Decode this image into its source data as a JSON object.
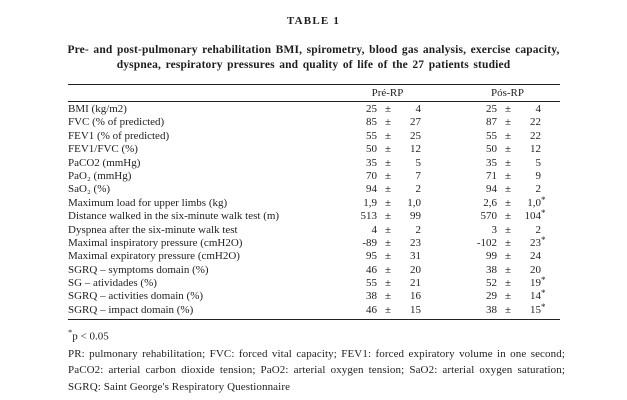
{
  "page": {
    "table_label": "TABLE 1",
    "title_line1": "Pre- and post-pulmonary rehabilitation BMI, spirometry, blood gas analysis, exercise capacity,",
    "title_line2": "dyspnea, respiratory pressures and quality of life of the 27 patients studied"
  },
  "table": {
    "plusminus": "±",
    "columns": {
      "pre": "Pré-RP",
      "pos": "Pós-RP"
    },
    "rows": [
      {
        "label": "BMI (kg/m2)",
        "pre": {
          "value": "25",
          "sd": "4",
          "star": ""
        },
        "pos": {
          "value": "25",
          "sd": "4",
          "star": ""
        }
      },
      {
        "label": "FVC (% of predicted)",
        "pre": {
          "value": "85",
          "sd": "27",
          "star": ""
        },
        "pos": {
          "value": "87",
          "sd": "22",
          "star": ""
        }
      },
      {
        "label": "FEV1 (% of predicted)",
        "pre": {
          "value": "55",
          "sd": "25",
          "star": ""
        },
        "pos": {
          "value": "55",
          "sd": "22",
          "star": ""
        }
      },
      {
        "label": "FEV1/FVC (%)",
        "pre": {
          "value": "50",
          "sd": "12",
          "star": ""
        },
        "pos": {
          "value": "50",
          "sd": "12",
          "star": ""
        }
      },
      {
        "label": "PaCO2 (mmHg)",
        "pre": {
          "value": "35",
          "sd": "5",
          "star": ""
        },
        "pos": {
          "value": "35",
          "sd": "5",
          "star": ""
        }
      },
      {
        "label": "PaO₂ (mmHg)",
        "pre": {
          "value": "70",
          "sd": "7",
          "star": ""
        },
        "pos": {
          "value": "71",
          "sd": "9",
          "star": ""
        }
      },
      {
        "label": "SaO₂ (%)",
        "pre": {
          "value": "94",
          "sd": "2",
          "star": ""
        },
        "pos": {
          "value": "94",
          "sd": "2",
          "star": ""
        }
      },
      {
        "label": "Maximum load for upper limbs (kg)",
        "pre": {
          "value": "1,9",
          "sd": "1,0",
          "star": ""
        },
        "pos": {
          "value": "2,6",
          "sd": "1,0",
          "star": "*"
        }
      },
      {
        "label": "Distance walked in the six-minute walk test (m)",
        "pre": {
          "value": "513",
          "sd": "99",
          "star": ""
        },
        "pos": {
          "value": "570",
          "sd": "104",
          "star": "*"
        }
      },
      {
        "label": "Dyspnea after the six-minute walk test",
        "pre": {
          "value": "4",
          "sd": "2",
          "star": ""
        },
        "pos": {
          "value": "3",
          "sd": "2",
          "star": ""
        }
      },
      {
        "label": "Maximal inspiratory pressure (cmH2O)",
        "pre": {
          "value": "-89",
          "sd": "23",
          "star": ""
        },
        "pos": {
          "value": "-102",
          "sd": "23",
          "star": "*"
        }
      },
      {
        "label": "Maximal expiratory pressure (cmH2O)",
        "pre": {
          "value": "95",
          "sd": "31",
          "star": ""
        },
        "pos": {
          "value": "99",
          "sd": "24",
          "star": ""
        }
      },
      {
        "label": "SGRQ – symptoms domain (%)",
        "pre": {
          "value": "46",
          "sd": "20",
          "star": ""
        },
        "pos": {
          "value": "38",
          "sd": "20",
          "star": ""
        }
      },
      {
        "label": "SG – atividades (%)",
        "pre": {
          "value": "55",
          "sd": "21",
          "star": ""
        },
        "pos": {
          "value": "52",
          "sd": "19",
          "star": "*"
        }
      },
      {
        "label": "SGRQ – activities domain (%)",
        "pre": {
          "value": "38",
          "sd": "16",
          "star": ""
        },
        "pos": {
          "value": "29",
          "sd": "14",
          "star": "*"
        }
      },
      {
        "label": "SGRQ – impact domain (%)",
        "pre": {
          "value": "46",
          "sd": "15",
          "star": ""
        },
        "pos": {
          "value": "38",
          "sd": "15",
          "star": "*"
        }
      }
    ]
  },
  "footnotes": {
    "significance_star": "*",
    "significance": "p < 0.05",
    "abbreviations": "PR: pulmonary rehabilitation; FVC: forced vital capacity; FEV1: forced expiratory volume in one second; PaCO2: arterial carbon dioxide tension; PaO2: arterial oxygen tension; SaO2: arterial oxygen saturation; SGRQ: Saint George's Respiratory Questionnaire"
  },
  "colors": {
    "text": "#1e1e1e",
    "background": "#ffffff",
    "rule": "#222222"
  }
}
